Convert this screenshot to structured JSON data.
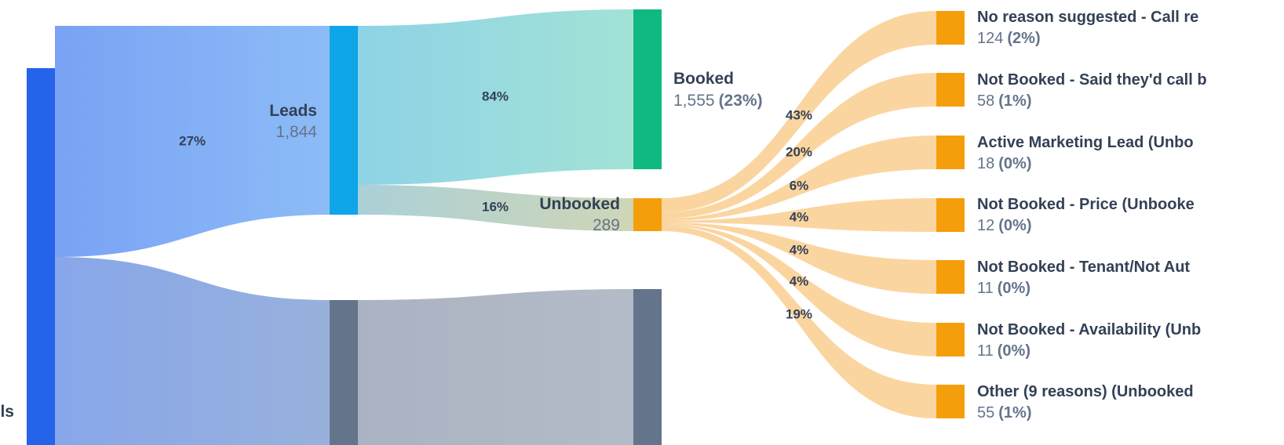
{
  "chart_data": {
    "type": "sankey",
    "colors": {
      "calls": "#2563eb",
      "leads": "#0ea5e9",
      "not_leads": "#64748b",
      "booked": "#10b981",
      "unbooked": "#f59e0b",
      "flow_unbooked_reasons": "#fbd5a0",
      "label_dark": "#334155",
      "label_muted": "#64748b"
    },
    "nodes": [
      {
        "id": "calls",
        "name": "lls"
      },
      {
        "id": "leads",
        "name": "Leads",
        "value": "1,844"
      },
      {
        "id": "not_leads",
        "name": "",
        "value": ""
      },
      {
        "id": "booked",
        "name": "Booked",
        "value": "1,555",
        "pct": "(23%)"
      },
      {
        "id": "unbooked",
        "name": "Unbooked",
        "value": "289"
      },
      {
        "id": "not_leads_end",
        "name": "",
        "value": ""
      },
      {
        "id": "r1",
        "name": "No reason suggested - Call re",
        "value": "124",
        "pct": "(2%)"
      },
      {
        "id": "r2",
        "name": "Not Booked - Said they'd call b",
        "value": "58",
        "pct": "(1%)"
      },
      {
        "id": "r3",
        "name": "Active Marketing Lead (Unbo",
        "value": "18",
        "pct": "(0%)"
      },
      {
        "id": "r4",
        "name": "Not Booked - Price (Unbooke",
        "value": "12",
        "pct": "(0%)"
      },
      {
        "id": "r5",
        "name": "Not Booked - Tenant/Not Aut",
        "value": "11",
        "pct": "(0%)"
      },
      {
        "id": "r6",
        "name": "Not Booked - Availability (Unb",
        "value": "11",
        "pct": "(0%)"
      },
      {
        "id": "r7",
        "name": "Other (9 reasons) (Unbooked",
        "value": "55",
        "pct": "(1%)"
      }
    ],
    "links": [
      {
        "source": "calls",
        "target": "leads",
        "label": "27%"
      },
      {
        "source": "calls",
        "target": "not_leads",
        "label": ""
      },
      {
        "source": "leads",
        "target": "booked",
        "label": "84%"
      },
      {
        "source": "leads",
        "target": "unbooked",
        "label": "16%"
      },
      {
        "source": "not_leads",
        "target": "not_leads_end",
        "label": ""
      },
      {
        "source": "unbooked",
        "target": "r1",
        "label": "43%"
      },
      {
        "source": "unbooked",
        "target": "r2",
        "label": "20%"
      },
      {
        "source": "unbooked",
        "target": "r3",
        "label": "6%"
      },
      {
        "source": "unbooked",
        "target": "r4",
        "label": "4%"
      },
      {
        "source": "unbooked",
        "target": "r5",
        "label": "4%"
      },
      {
        "source": "unbooked",
        "target": "r6",
        "label": "4%"
      },
      {
        "source": "unbooked",
        "target": "r7",
        "label": "19%"
      }
    ]
  }
}
